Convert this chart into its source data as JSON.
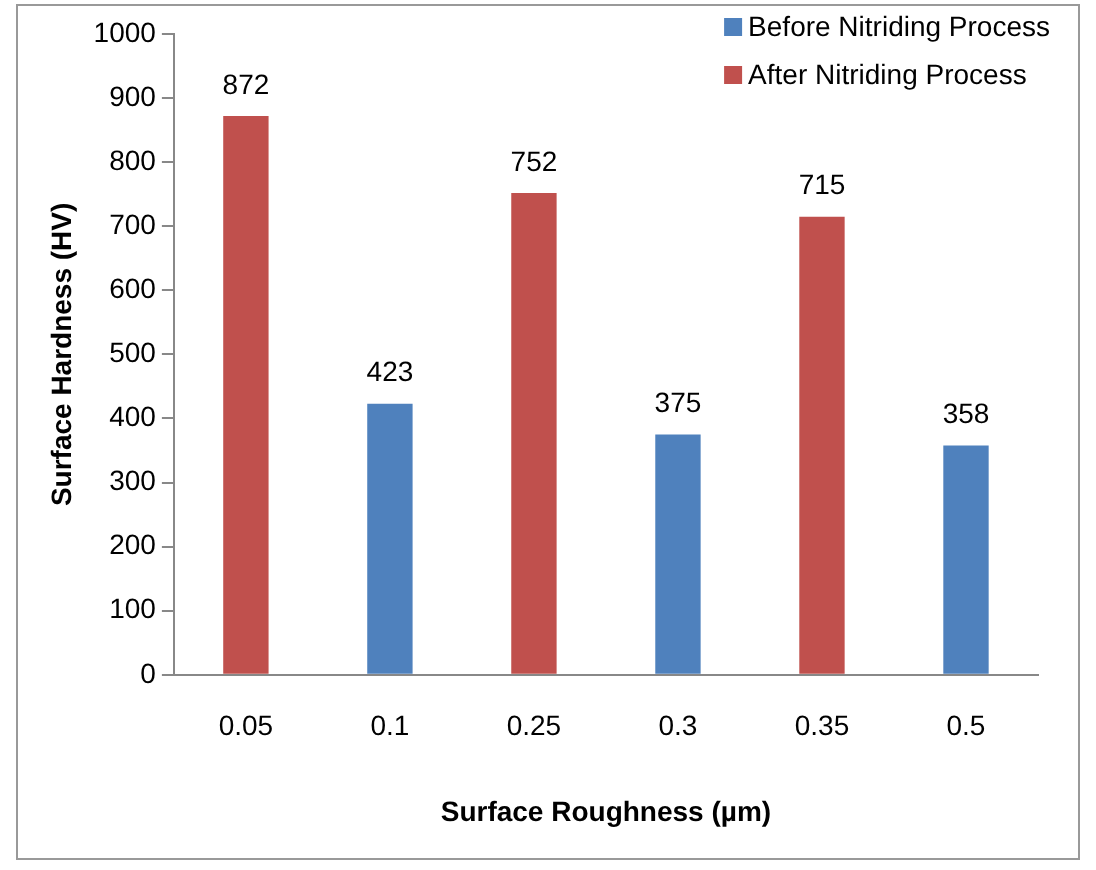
{
  "chart_data": {
    "type": "bar",
    "xlabel": "Surface Roughness (µm)",
    "ylabel": "Surface Hardness (HV)",
    "categories": [
      "0.05",
      "0.1",
      "0.25",
      "0.3",
      "0.35",
      "0.5"
    ],
    "series": [
      {
        "name": "Before Nitriding Process",
        "color": "#4f81bd",
        "values": [
          null,
          423,
          null,
          375,
          null,
          358
        ]
      },
      {
        "name": "After Nitriding Process",
        "color": "#c0504d",
        "values": [
          872,
          null,
          752,
          null,
          715,
          null
        ]
      }
    ],
    "stacked": true,
    "ylim": [
      0,
      1000
    ],
    "yticks": [
      0,
      100,
      200,
      300,
      400,
      500,
      600,
      700,
      800,
      900,
      1000
    ],
    "grid": false,
    "legend": "top right",
    "data_labels": true
  }
}
